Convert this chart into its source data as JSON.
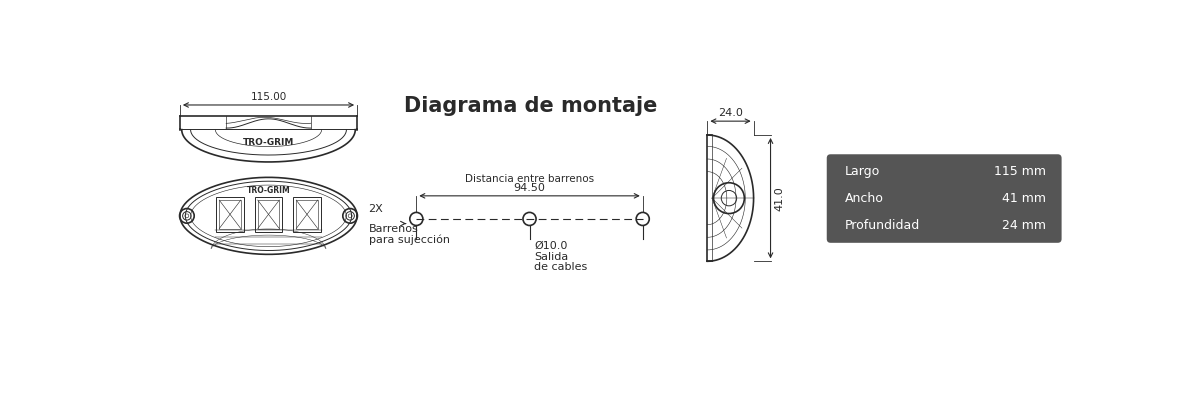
{
  "bg_color": "#ffffff",
  "line_color": "#2a2a2a",
  "title": "Diagrama de montaje",
  "title_fontsize": 15,
  "title_fontweight": "bold",
  "specs_bg": "#555555",
  "specs_text_color": "#ffffff",
  "specs": [
    {
      "label": "Largo",
      "value": "115 mm"
    },
    {
      "label": "Ancho",
      "value": "41 mm"
    },
    {
      "label": "Profundidad",
      "value": "24 mm"
    }
  ],
  "dim_115": "115.00",
  "dim_94": "94.50",
  "dim_dist": "Distancia entre barrenos",
  "dim_24": "24.0",
  "dim_41": "41.0",
  "dim_hole": "Ø10.0",
  "label_cable_1": "Salida",
  "label_cable_2": "de cables",
  "label_2x": "2X",
  "label_bar1": "Barrenos",
  "label_bar2": "para sujección",
  "brand": "TRO-GRIM"
}
